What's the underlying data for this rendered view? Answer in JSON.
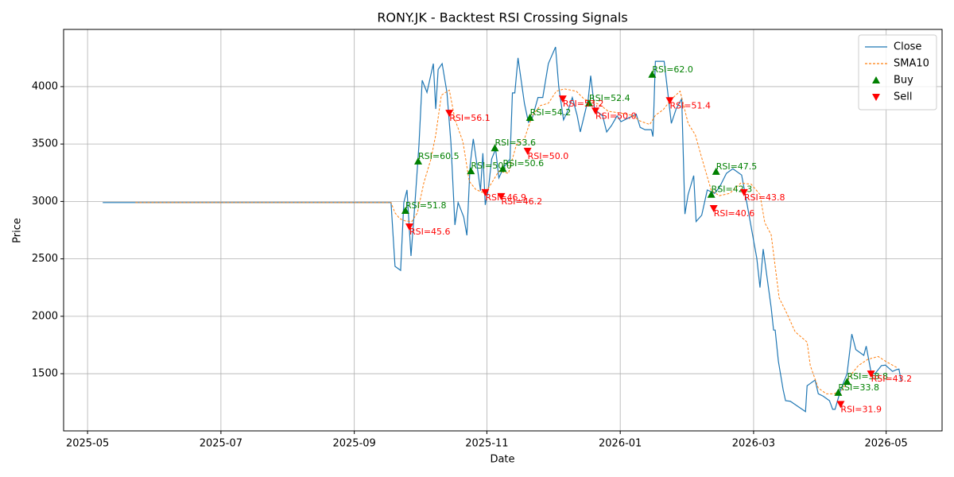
{
  "chart_data": {
    "type": "line",
    "title": "RONY.JK - Backtest RSI Crossing Signals",
    "xlabel": "Date",
    "ylabel": "Price",
    "xlim": [
      2025.303,
      2026.403
    ],
    "ylim": [
      1002,
      4498
    ],
    "xticks": [
      {
        "value": 2025.333,
        "label": "2025-05"
      },
      {
        "value": 2025.5,
        "label": "2025-07"
      },
      {
        "value": 2025.667,
        "label": "2025-09"
      },
      {
        "value": 2025.833,
        "label": "2025-11"
      },
      {
        "value": 2026.0,
        "label": "2026-01"
      },
      {
        "value": 2026.167,
        "label": "2026-03"
      },
      {
        "value": 2026.333,
        "label": "2026-05"
      }
    ],
    "yticks": [
      1500,
      2000,
      2500,
      3000,
      3500,
      4000
    ],
    "grid": true,
    "legend": "upper right",
    "series": [
      {
        "name": "Close",
        "type": "line",
        "color": "#1f77b4",
        "dash": "solid",
        "x": [
          2025.352,
          2025.713,
          2025.718,
          2025.725,
          2025.729,
          2025.733,
          2025.738,
          2025.743,
          2025.748,
          2025.752,
          2025.758,
          2025.766,
          2025.769,
          2025.772,
          2025.777,
          2025.783,
          2025.788,
          2025.793,
          2025.797,
          2025.804,
          2025.808,
          2025.812,
          2025.816,
          2025.821,
          2025.825,
          2025.828,
          2025.831,
          2025.835,
          2025.839,
          2025.844,
          2025.848,
          2025.852,
          2025.856,
          2025.862,
          2025.865,
          2025.868,
          2025.872,
          2025.88,
          2025.885,
          2025.89,
          2025.897,
          2025.903,
          2025.91,
          2025.919,
          2025.923,
          2025.929,
          2025.935,
          2025.94,
          2025.946,
          2025.95,
          2025.96,
          2025.963,
          2025.968,
          2025.978,
          2025.983,
          2025.989,
          2025.996,
          2026.001,
          2026.02,
          2026.025,
          2026.031,
          2026.039,
          2026.041,
          2026.044,
          2026.055,
          2026.064,
          2026.07,
          2026.077,
          2026.081,
          2026.085,
          2026.092,
          2026.095,
          2026.102,
          2026.109,
          2026.118,
          2026.124,
          2026.133,
          2026.141,
          2026.145,
          2026.152,
          2026.159,
          2026.171,
          2026.175,
          2026.179,
          2026.189,
          2026.192,
          2026.194,
          2026.198,
          2026.204,
          2026.207,
          2026.213,
          2026.232,
          2026.234,
          2026.244,
          2026.248,
          2026.254,
          2026.262,
          2026.266,
          2026.269,
          2026.276,
          2026.284,
          2026.29,
          2026.295,
          2026.305,
          2026.308,
          2026.314,
          2026.319,
          2026.327,
          2026.332,
          2026.341,
          2026.346,
          2026.349,
          2026.352
        ],
        "values": [
          2990,
          2990,
          2435,
          2400,
          2990,
          3100,
          2525,
          2990,
          3495,
          4055,
          3950,
          4200,
          3805,
          4150,
          4200,
          3950,
          3510,
          2795,
          2990,
          2865,
          2705,
          3315,
          3545,
          3300,
          3095,
          3420,
          2970,
          3115,
          3370,
          3455,
          3205,
          3265,
          3315,
          3370,
          3945,
          3945,
          4250,
          3855,
          3690,
          3730,
          3905,
          3905,
          4200,
          4345,
          4000,
          3710,
          3800,
          3905,
          3750,
          3605,
          3895,
          4095,
          3800,
          3745,
          3605,
          3660,
          3745,
          3695,
          3760,
          3645,
          3625,
          3625,
          3565,
          4220,
          4220,
          3680,
          3805,
          3895,
          2890,
          3060,
          3225,
          2825,
          2880,
          3100,
          3070,
          3120,
          3245,
          3285,
          3265,
          3230,
          2970,
          2505,
          2250,
          2585,
          2075,
          1880,
          1880,
          1610,
          1360,
          1265,
          1260,
          1170,
          1395,
          1445,
          1325,
          1305,
          1265,
          1190,
          1190,
          1360,
          1500,
          1845,
          1710,
          1660,
          1740,
          1515,
          1500,
          1570,
          1575,
          1520,
          1535,
          1540,
          1430
        ]
      },
      {
        "name": "SMA10",
        "type": "line",
        "color": "#ff7f0e",
        "dash": "dashed",
        "x": [
          2025.393,
          2025.713,
          2025.718,
          2025.724,
          2025.731,
          2025.739,
          2025.746,
          2025.754,
          2025.763,
          2025.769,
          2025.776,
          2025.786,
          2025.793,
          2025.803,
          2025.811,
          2025.819,
          2025.827,
          2025.834,
          2025.842,
          2025.848,
          2025.86,
          2025.87,
          2025.88,
          2025.89,
          2025.9,
          2025.91,
          2025.92,
          2025.93,
          2025.945,
          2025.955,
          2025.965,
          2025.975,
          2025.985,
          2026.0,
          2026.015,
          2026.025,
          2026.037,
          2026.044,
          2026.054,
          2026.064,
          2026.075,
          2026.085,
          2026.094,
          2026.101,
          2026.114,
          2026.124,
          2026.137,
          2026.151,
          2026.164,
          2026.175,
          2026.181,
          2026.189,
          2026.199,
          2026.209,
          2026.219,
          2026.234,
          2026.238,
          2026.248,
          2026.258,
          2026.268,
          2026.278,
          2026.29,
          2026.298,
          2026.31,
          2026.323,
          2026.333,
          2026.346
        ],
        "values": [
          2990,
          2990,
          2900,
          2850,
          2830,
          2825,
          2900,
          3160,
          3370,
          3580,
          3925,
          3970,
          3715,
          3520,
          3175,
          3105,
          3080,
          3105,
          3195,
          3265,
          3245,
          3495,
          3545,
          3750,
          3835,
          3855,
          3960,
          3980,
          3960,
          3890,
          3870,
          3840,
          3785,
          3770,
          3750,
          3700,
          3670,
          3750,
          3800,
          3890,
          3960,
          3680,
          3580,
          3405,
          3095,
          3050,
          3070,
          3160,
          3150,
          3060,
          2815,
          2710,
          2160,
          2020,
          1865,
          1775,
          1570,
          1375,
          1325,
          1325,
          1360,
          1500,
          1570,
          1625,
          1650,
          1605,
          1555
        ]
      },
      {
        "name": "Buy",
        "type": "scatter",
        "color": "green",
        "marker": "up",
        "x": [
          2025.731,
          2025.747,
          2025.813,
          2025.843,
          2025.853,
          2025.887,
          2025.961,
          2026.04,
          2026.114,
          2026.12,
          2026.273,
          2026.284
        ],
        "values": [
          2920,
          3350,
          3265,
          3465,
          3285,
          3730,
          3855,
          4105,
          3060,
          3260,
          1335,
          1430
        ],
        "labels": [
          "RSI=51.8",
          "RSI=60.5",
          "RSI=50.0",
          "RSI=53.6",
          "RSI=50.6",
          "RSI=54.2",
          "RSI=52.4",
          "RSI=62.0",
          "RSI=42.3",
          "RSI=47.5",
          "RSI=33.8",
          "RSI=38.8"
        ]
      },
      {
        "name": "Sell",
        "type": "scatter",
        "color": "red",
        "marker": "down",
        "x": [
          2025.736,
          2025.786,
          2025.831,
          2025.851,
          2025.884,
          2025.928,
          2025.969,
          2026.062,
          2026.117,
          2026.155,
          2026.276,
          2026.314
        ],
        "values": [
          2780,
          3770,
          3080,
          3045,
          3440,
          3895,
          3790,
          3880,
          2940,
          3080,
          1235,
          1500
        ],
        "labels": [
          "RSI=45.6",
          "RSI=56.1",
          "RSI=46.9",
          "RSI=46.2",
          "RSI=50.0",
          "RSI=53.2",
          "RSI=50.0",
          "RSI=51.4",
          "RSI=40.6",
          "RSI=43.8",
          "RSI=31.9",
          "RSI=43.2"
        ]
      }
    ]
  }
}
